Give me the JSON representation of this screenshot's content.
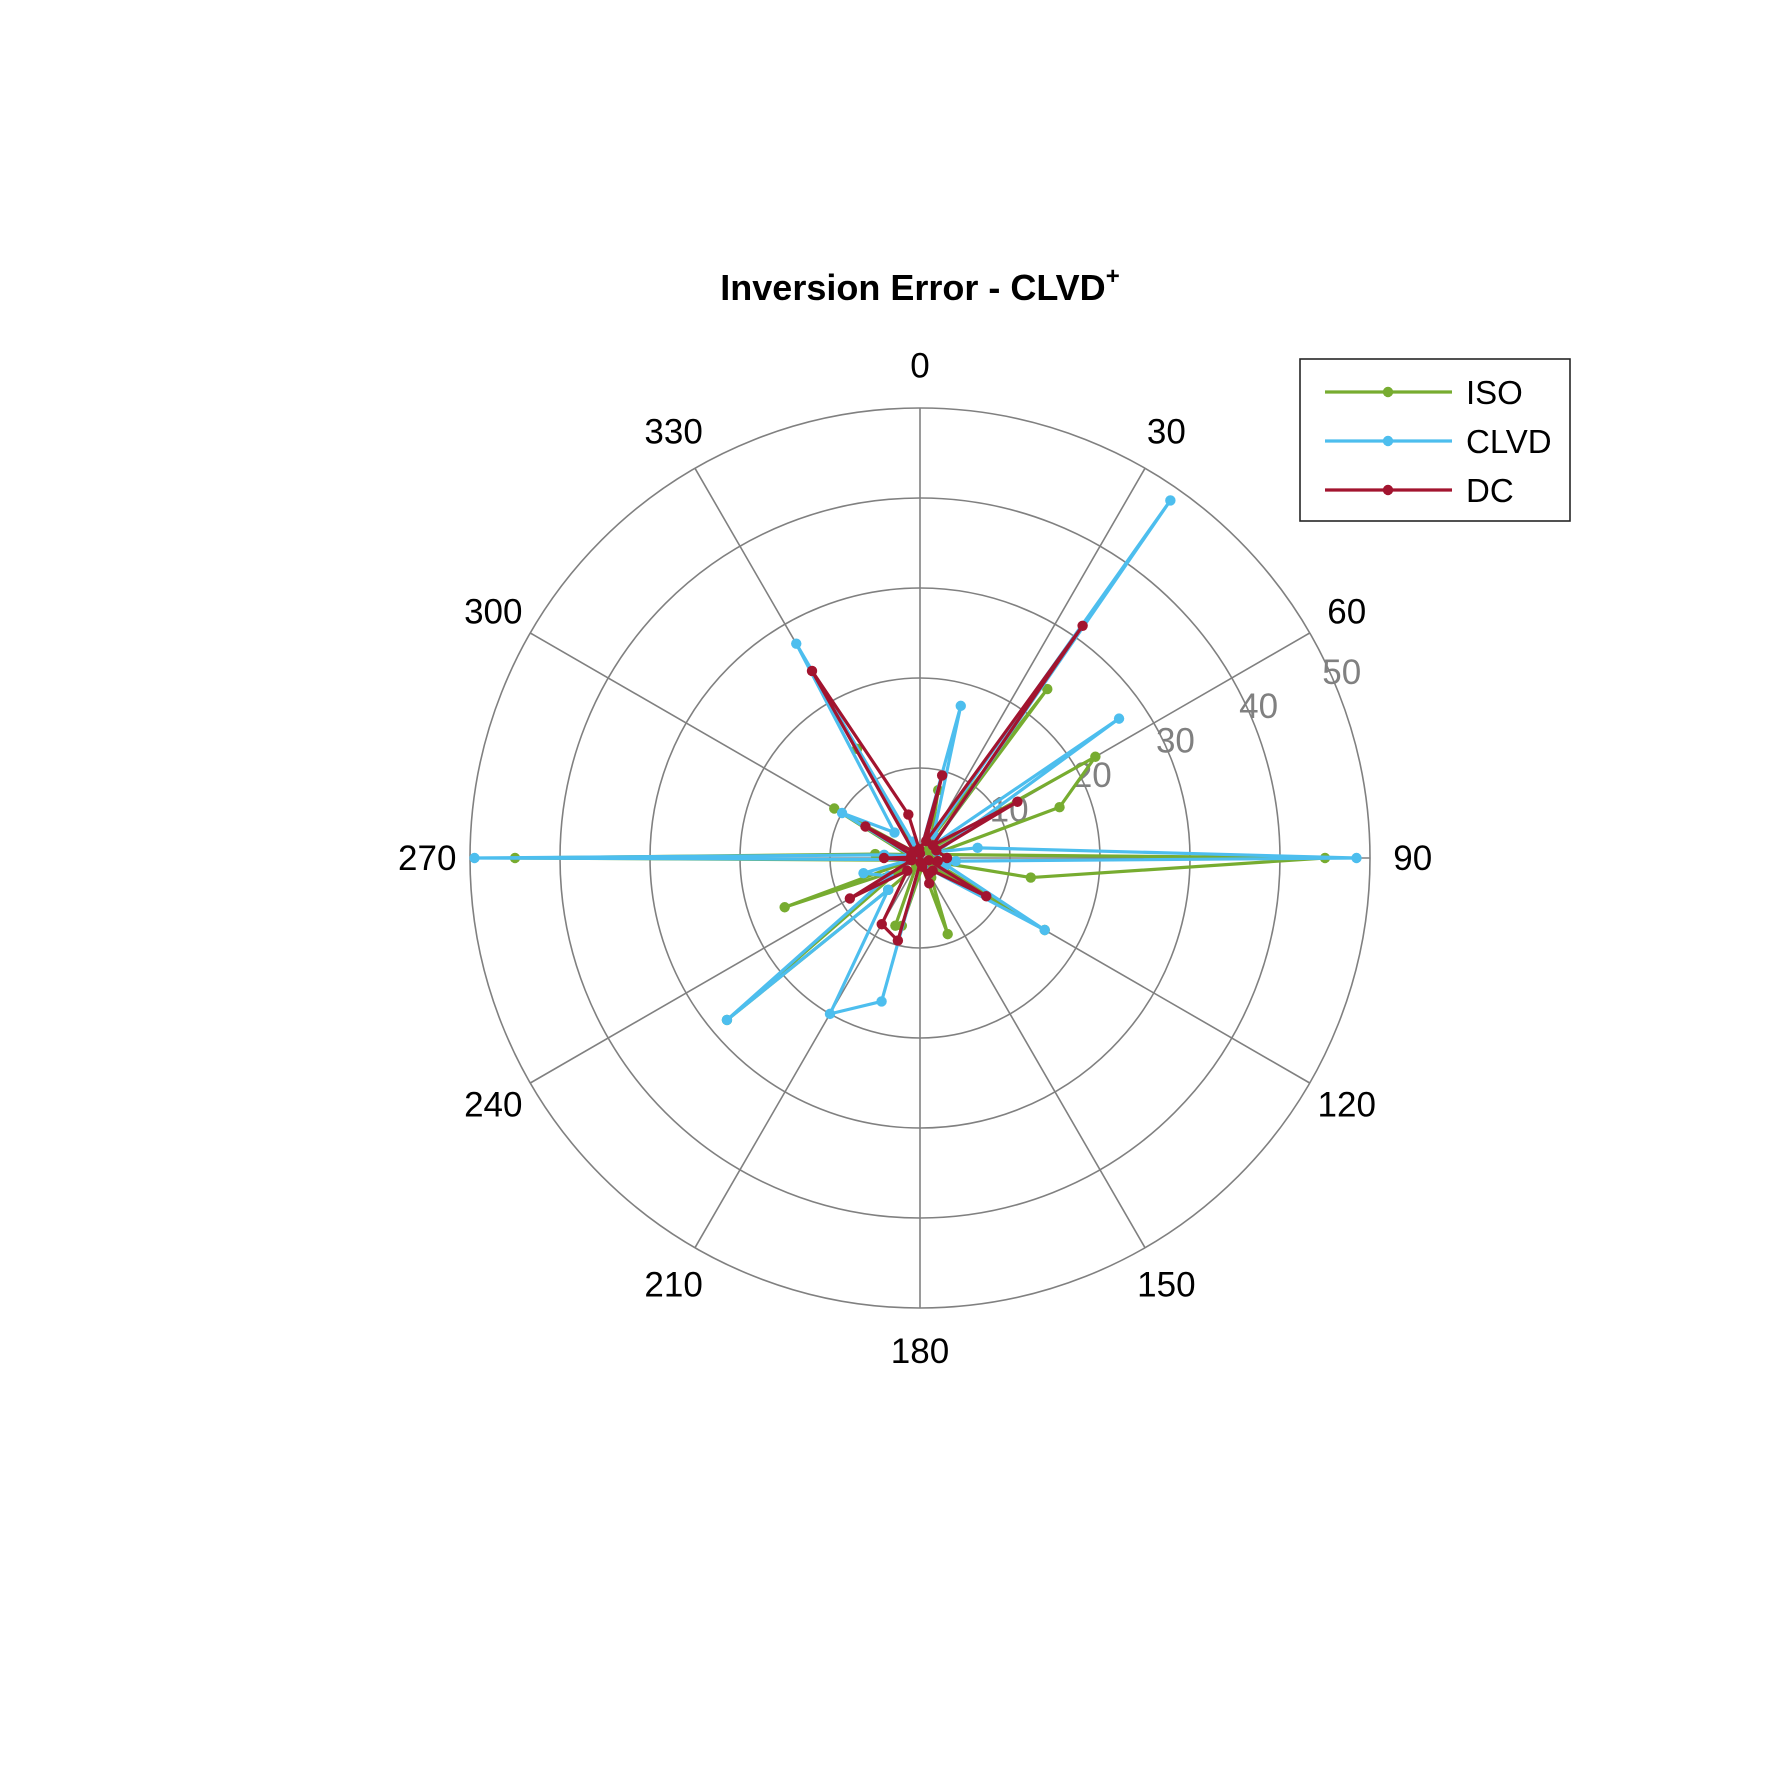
{
  "chart_data": {
    "type": "polar-line",
    "title": "Inversion Error - CLVD",
    "title_superscript": "+",
    "theta_ticks": [
      0,
      30,
      60,
      90,
      120,
      150,
      180,
      210,
      240,
      270,
      300,
      330
    ],
    "theta_tick_labels": [
      "0",
      "30",
      "60",
      "90",
      "120",
      "150",
      "180",
      "210",
      "240",
      "270",
      "300",
      "330"
    ],
    "theta_zero_location": "top",
    "theta_direction": "clockwise",
    "r_ticks": [
      10,
      20,
      30,
      40,
      50
    ],
    "r_tick_labels": [
      "10",
      "20",
      "30",
      "40",
      "50"
    ],
    "r_lim": [
      0,
      50
    ],
    "r_label_angle_deg": 67.5,
    "legend_position": "top-right",
    "grid": true,
    "series": [
      {
        "name": "ISO",
        "color": "#77AC30",
        "points": [
          [
            0,
            0.5
          ],
          [
            15,
            7.8
          ],
          [
            30,
            2.5
          ],
          [
            37,
            23.5
          ],
          [
            45,
            1.2
          ],
          [
            60,
            22.5
          ],
          [
            70,
            16.5
          ],
          [
            75,
            1.5
          ],
          [
            90,
            45
          ],
          [
            100,
            12.5
          ],
          [
            105,
            1.5
          ],
          [
            120,
            16
          ],
          [
            135,
            1
          ],
          [
            150,
            2.5
          ],
          [
            160,
            9
          ],
          [
            165,
            1
          ],
          [
            195,
            7.8
          ],
          [
            200,
            8
          ],
          [
            205,
            1
          ],
          [
            225,
            5
          ],
          [
            230,
            28
          ],
          [
            240,
            2.5
          ],
          [
            250,
            16
          ],
          [
            255,
            1
          ],
          [
            270,
            45
          ],
          [
            275,
            5
          ],
          [
            285,
            1.5
          ],
          [
            300,
            11
          ],
          [
            315,
            1
          ],
          [
            330,
            14
          ],
          [
            335,
            1
          ],
          [
            345,
            1
          ]
        ]
      },
      {
        "name": "CLVD",
        "color": "#4DBEEE",
        "points": [
          [
            0,
            0.5
          ],
          [
            15,
            17.5
          ],
          [
            30,
            3
          ],
          [
            35,
            48.5
          ],
          [
            45,
            2
          ],
          [
            55,
            27
          ],
          [
            70,
            2
          ],
          [
            80,
            6.5
          ],
          [
            90,
            48.5
          ],
          [
            95,
            4
          ],
          [
            105,
            3
          ],
          [
            120,
            16
          ],
          [
            135,
            2
          ],
          [
            150,
            2
          ],
          [
            160,
            1
          ],
          [
            175,
            0.5
          ],
          [
            195,
            16.5
          ],
          [
            210,
            20
          ],
          [
            225,
            5
          ],
          [
            230,
            28
          ],
          [
            240,
            4
          ],
          [
            255,
            6.5
          ],
          [
            260,
            1
          ],
          [
            270,
            49.5
          ],
          [
            275,
            4
          ],
          [
            285,
            1
          ],
          [
            300,
            10
          ],
          [
            315,
            4
          ],
          [
            330,
            27.5
          ],
          [
            335,
            2
          ],
          [
            345,
            1
          ],
          [
            355,
            0.5
          ]
        ]
      },
      {
        "name": "DC",
        "color": "#A2142F",
        "points": [
          [
            0,
            0.5
          ],
          [
            15,
            9.5
          ],
          [
            20,
            2
          ],
          [
            35,
            31.5
          ],
          [
            45,
            2
          ],
          [
            60,
            12.5
          ],
          [
            65,
            2
          ],
          [
            90,
            3
          ],
          [
            100,
            2
          ],
          [
            105,
            1
          ],
          [
            120,
            8.5
          ],
          [
            135,
            2
          ],
          [
            150,
            2
          ],
          [
            160,
            3
          ],
          [
            165,
            1
          ],
          [
            175,
            0.5
          ],
          [
            195,
            9.5
          ],
          [
            210,
            8.5
          ],
          [
            225,
            2
          ],
          [
            240,
            9
          ],
          [
            255,
            1
          ],
          [
            270,
            4
          ],
          [
            275,
            1
          ],
          [
            290,
            1
          ],
          [
            300,
            7
          ],
          [
            315,
            1
          ],
          [
            330,
            24
          ],
          [
            345,
            5
          ],
          [
            355,
            1
          ]
        ]
      }
    ]
  }
}
